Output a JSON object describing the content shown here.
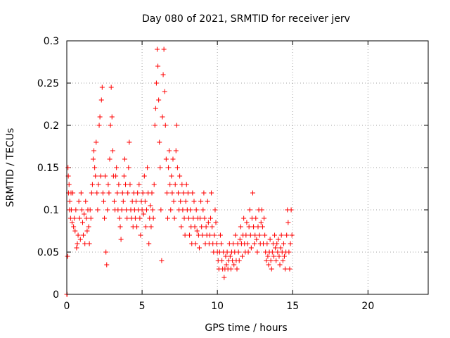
{
  "chart_data": {
    "type": "scatter",
    "title": "Day 080 of 2021, SRMTID for receiver jerv",
    "xlabel": "GPS time / hours",
    "ylabel": "SRMTID / TECUs",
    "xlim": [
      0,
      24
    ],
    "ylim": [
      0,
      0.3
    ],
    "xticks": [
      0,
      5,
      10,
      15,
      20
    ],
    "xtick_labels": [
      "0",
      "5",
      "10",
      "15",
      "20"
    ],
    "yticks": [
      0,
      0.05,
      0.1,
      0.15,
      0.2,
      0.25,
      0.3
    ],
    "ytick_labels": [
      "0",
      "0.05",
      "0.1",
      "0.15",
      "0.2",
      "0.25",
      "0.3"
    ],
    "grid": true,
    "marker": "+",
    "marker_color": "#ff0000",
    "series": [
      {
        "name": "SRMTID",
        "points": [
          [
            0.0,
            0.0
          ],
          [
            0.02,
            0.0
          ],
          [
            0.05,
            0.045
          ],
          [
            0.08,
            0.15
          ],
          [
            0.1,
            0.14
          ],
          [
            0.12,
            0.12
          ],
          [
            0.15,
            0.13
          ],
          [
            0.18,
            0.1
          ],
          [
            0.2,
            0.11
          ],
          [
            0.25,
            0.09
          ],
          [
            0.28,
            0.12
          ],
          [
            0.3,
            0.1
          ],
          [
            0.35,
            0.085
          ],
          [
            0.4,
            0.12
          ],
          [
            0.45,
            0.08
          ],
          [
            0.5,
            0.09
          ],
          [
            0.55,
            0.075
          ],
          [
            0.6,
            0.1
          ],
          [
            0.65,
            0.055
          ],
          [
            0.7,
            0.06
          ],
          [
            0.75,
            0.07
          ],
          [
            0.8,
            0.11
          ],
          [
            0.85,
            0.09
          ],
          [
            0.9,
            0.065
          ],
          [
            0.95,
            0.12
          ],
          [
            1.0,
            0.1
          ],
          [
            1.05,
            0.085
          ],
          [
            1.1,
            0.07
          ],
          [
            1.15,
            0.095
          ],
          [
            1.2,
            0.06
          ],
          [
            1.25,
            0.11
          ],
          [
            1.3,
            0.09
          ],
          [
            1.35,
            0.075
          ],
          [
            1.4,
            0.1
          ],
          [
            1.45,
            0.08
          ],
          [
            1.5,
            0.06
          ],
          [
            1.55,
            0.1
          ],
          [
            1.6,
            0.09
          ],
          [
            1.65,
            0.12
          ],
          [
            1.7,
            0.13
          ],
          [
            1.75,
            0.16
          ],
          [
            1.8,
            0.17
          ],
          [
            1.85,
            0.15
          ],
          [
            1.9,
            0.14
          ],
          [
            1.95,
            0.18
          ],
          [
            2.0,
            0.12
          ],
          [
            2.05,
            0.1
          ],
          [
            2.1,
            0.13
          ],
          [
            2.15,
            0.2
          ],
          [
            2.2,
            0.21
          ],
          [
            2.25,
            0.14
          ],
          [
            2.3,
            0.23
          ],
          [
            2.35,
            0.245
          ],
          [
            2.4,
            0.12
          ],
          [
            2.45,
            0.11
          ],
          [
            2.5,
            0.09
          ],
          [
            2.55,
            0.14
          ],
          [
            2.6,
            0.05
          ],
          [
            2.65,
            0.035
          ],
          [
            2.7,
            0.1
          ],
          [
            2.75,
            0.13
          ],
          [
            2.8,
            0.12
          ],
          [
            2.85,
            0.16
          ],
          [
            2.9,
            0.2
          ],
          [
            2.95,
            0.245
          ],
          [
            3.0,
            0.21
          ],
          [
            3.05,
            0.17
          ],
          [
            3.1,
            0.14
          ],
          [
            3.15,
            0.11
          ],
          [
            3.2,
            0.1
          ],
          [
            3.25,
            0.14
          ],
          [
            3.3,
            0.15
          ],
          [
            3.35,
            0.12
          ],
          [
            3.4,
            0.1
          ],
          [
            3.45,
            0.13
          ],
          [
            3.5,
            0.09
          ],
          [
            3.55,
            0.08
          ],
          [
            3.6,
            0.065
          ],
          [
            3.65,
            0.1
          ],
          [
            3.7,
            0.12
          ],
          [
            3.75,
            0.11
          ],
          [
            3.8,
            0.14
          ],
          [
            3.85,
            0.16
          ],
          [
            3.9,
            0.13
          ],
          [
            3.95,
            0.1
          ],
          [
            4.0,
            0.09
          ],
          [
            4.05,
            0.12
          ],
          [
            4.1,
            0.15
          ],
          [
            4.15,
            0.18
          ],
          [
            4.2,
            0.13
          ],
          [
            4.25,
            0.1
          ],
          [
            4.3,
            0.09
          ],
          [
            4.35,
            0.11
          ],
          [
            4.4,
            0.08
          ],
          [
            4.45,
            0.12
          ],
          [
            4.5,
            0.1
          ],
          [
            4.55,
            0.09
          ],
          [
            4.6,
            0.11
          ],
          [
            4.65,
            0.08
          ],
          [
            4.7,
            0.12
          ],
          [
            4.75,
            0.1
          ],
          [
            4.8,
            0.13
          ],
          [
            4.85,
            0.09
          ],
          [
            4.9,
            0.07
          ],
          [
            4.95,
            0.11
          ],
          [
            5.0,
            0.1
          ],
          [
            5.05,
            0.12
          ],
          [
            5.1,
            0.095
          ],
          [
            5.15,
            0.14
          ],
          [
            5.2,
            0.11
          ],
          [
            5.25,
            0.08
          ],
          [
            5.3,
            0.1
          ],
          [
            5.35,
            0.15
          ],
          [
            5.4,
            0.12
          ],
          [
            5.45,
            0.06
          ],
          [
            5.5,
            0.09
          ],
          [
            5.55,
            0.105
          ],
          [
            5.6,
            0.08
          ],
          [
            5.65,
            0.12
          ],
          [
            5.7,
            0.1
          ],
          [
            5.75,
            0.09
          ],
          [
            5.8,
            0.13
          ],
          [
            5.85,
            0.2
          ],
          [
            5.9,
            0.22
          ],
          [
            5.95,
            0.25
          ],
          [
            6.0,
            0.29
          ],
          [
            6.05,
            0.27
          ],
          [
            6.1,
            0.23
          ],
          [
            6.15,
            0.18
          ],
          [
            6.2,
            0.15
          ],
          [
            6.25,
            0.1
          ],
          [
            6.3,
            0.04
          ],
          [
            6.35,
            0.21
          ],
          [
            6.4,
            0.26
          ],
          [
            6.45,
            0.29
          ],
          [
            6.5,
            0.24
          ],
          [
            6.55,
            0.2
          ],
          [
            6.6,
            0.16
          ],
          [
            6.65,
            0.12
          ],
          [
            6.7,
            0.09
          ],
          [
            6.75,
            0.15
          ],
          [
            6.8,
            0.17
          ],
          [
            6.85,
            0.13
          ],
          [
            6.9,
            0.1
          ],
          [
            6.95,
            0.14
          ],
          [
            7.0,
            0.12
          ],
          [
            7.05,
            0.16
          ],
          [
            7.1,
            0.11
          ],
          [
            7.15,
            0.09
          ],
          [
            7.2,
            0.13
          ],
          [
            7.25,
            0.17
          ],
          [
            7.3,
            0.2
          ],
          [
            7.35,
            0.15
          ],
          [
            7.4,
            0.12
          ],
          [
            7.45,
            0.1
          ],
          [
            7.5,
            0.14
          ],
          [
            7.55,
            0.11
          ],
          [
            7.6,
            0.08
          ],
          [
            7.65,
            0.13
          ],
          [
            7.7,
            0.1
          ],
          [
            7.75,
            0.12
          ],
          [
            7.8,
            0.09
          ],
          [
            7.85,
            0.07
          ],
          [
            7.9,
            0.11
          ],
          [
            7.95,
            0.13
          ],
          [
            8.0,
            0.1
          ],
          [
            8.05,
            0.12
          ],
          [
            8.1,
            0.09
          ],
          [
            8.15,
            0.07
          ],
          [
            8.2,
            0.1
          ],
          [
            8.25,
            0.08
          ],
          [
            8.3,
            0.06
          ],
          [
            8.35,
            0.12
          ],
          [
            8.4,
            0.09
          ],
          [
            8.45,
            0.11
          ],
          [
            8.5,
            0.08
          ],
          [
            8.55,
            0.06
          ],
          [
            8.6,
            0.1
          ],
          [
            8.65,
            0.075
          ],
          [
            8.7,
            0.09
          ],
          [
            8.75,
            0.07
          ],
          [
            8.8,
            0.055
          ],
          [
            8.85,
            0.09
          ],
          [
            8.9,
            0.11
          ],
          [
            8.95,
            0.08
          ],
          [
            9.0,
            0.07
          ],
          [
            9.05,
            0.1
          ],
          [
            9.1,
            0.12
          ],
          [
            9.15,
            0.09
          ],
          [
            9.2,
            0.06
          ],
          [
            9.25,
            0.08
          ],
          [
            9.3,
            0.07
          ],
          [
            9.35,
            0.11
          ],
          [
            9.4,
            0.085
          ],
          [
            9.45,
            0.06
          ],
          [
            9.5,
            0.07
          ],
          [
            9.55,
            0.09
          ],
          [
            9.6,
            0.12
          ],
          [
            9.65,
            0.08
          ],
          [
            9.7,
            0.06
          ],
          [
            9.75,
            0.05
          ],
          [
            9.8,
            0.07
          ],
          [
            9.85,
            0.1
          ],
          [
            9.9,
            0.085
          ],
          [
            9.95,
            0.06
          ],
          [
            10.0,
            0.05
          ],
          [
            10.05,
            0.04
          ],
          [
            10.1,
            0.03
          ],
          [
            10.15,
            0.05
          ],
          [
            10.2,
            0.07
          ],
          [
            10.25,
            0.06
          ],
          [
            10.3,
            0.04
          ],
          [
            10.35,
            0.03
          ],
          [
            10.4,
            0.05
          ],
          [
            10.45,
            0.02
          ],
          [
            10.5,
            0.03
          ],
          [
            10.55,
            0.045
          ],
          [
            10.6,
            0.035
          ],
          [
            10.65,
            0.05
          ],
          [
            10.7,
            0.03
          ],
          [
            10.75,
            0.04
          ],
          [
            10.8,
            0.06
          ],
          [
            10.85,
            0.045
          ],
          [
            10.9,
            0.03
          ],
          [
            10.95,
            0.05
          ],
          [
            11.0,
            0.04
          ],
          [
            11.05,
            0.06
          ],
          [
            11.1,
            0.035
          ],
          [
            11.15,
            0.05
          ],
          [
            11.2,
            0.07
          ],
          [
            11.25,
            0.04
          ],
          [
            11.3,
            0.03
          ],
          [
            11.35,
            0.06
          ],
          [
            11.4,
            0.05
          ],
          [
            11.45,
            0.04
          ],
          [
            11.5,
            0.065
          ],
          [
            11.55,
            0.08
          ],
          [
            11.6,
            0.06
          ],
          [
            11.65,
            0.045
          ],
          [
            11.7,
            0.07
          ],
          [
            11.75,
            0.09
          ],
          [
            11.8,
            0.06
          ],
          [
            11.85,
            0.05
          ],
          [
            11.9,
            0.07
          ],
          [
            11.95,
            0.085
          ],
          [
            12.0,
            0.06
          ],
          [
            12.05,
            0.05
          ],
          [
            12.1,
            0.08
          ],
          [
            12.15,
            0.1
          ],
          [
            12.2,
            0.07
          ],
          [
            12.25,
            0.055
          ],
          [
            12.3,
            0.09
          ],
          [
            12.35,
            0.12
          ],
          [
            12.4,
            0.08
          ],
          [
            12.45,
            0.06
          ],
          [
            12.5,
            0.07
          ],
          [
            12.55,
            0.09
          ],
          [
            12.6,
            0.065
          ],
          [
            12.65,
            0.05
          ],
          [
            12.7,
            0.08
          ],
          [
            12.75,
            0.1
          ],
          [
            12.8,
            0.07
          ],
          [
            12.85,
            0.06
          ],
          [
            12.9,
            0.085
          ],
          [
            12.95,
            0.1
          ],
          [
            13.0,
            0.08
          ],
          [
            13.05,
            0.06
          ],
          [
            13.1,
            0.09
          ],
          [
            13.15,
            0.07
          ],
          [
            13.2,
            0.05
          ],
          [
            13.25,
            0.04
          ],
          [
            13.3,
            0.06
          ],
          [
            13.35,
            0.045
          ],
          [
            13.4,
            0.035
          ],
          [
            13.45,
            0.05
          ],
          [
            13.5,
            0.065
          ],
          [
            13.55,
            0.04
          ],
          [
            13.6,
            0.03
          ],
          [
            13.65,
            0.05
          ],
          [
            13.7,
            0.06
          ],
          [
            13.75,
            0.045
          ],
          [
            13.8,
            0.07
          ],
          [
            13.85,
            0.055
          ],
          [
            13.9,
            0.04
          ],
          [
            13.95,
            0.06
          ],
          [
            14.0,
            0.05
          ],
          [
            14.05,
            0.065
          ],
          [
            14.1,
            0.045
          ],
          [
            14.15,
            0.035
          ],
          [
            14.2,
            0.055
          ],
          [
            14.25,
            0.07
          ],
          [
            14.3,
            0.05
          ],
          [
            14.35,
            0.04
          ],
          [
            14.4,
            0.06
          ],
          [
            14.45,
            0.045
          ],
          [
            14.5,
            0.03
          ],
          [
            14.55,
            0.05
          ],
          [
            14.6,
            0.07
          ],
          [
            14.65,
            0.1
          ],
          [
            14.7,
            0.085
          ],
          [
            14.75,
            0.05
          ],
          [
            14.8,
            0.03
          ],
          [
            14.85,
            0.06
          ],
          [
            14.9,
            0.1
          ],
          [
            14.95,
            0.07
          ]
        ]
      }
    ]
  }
}
